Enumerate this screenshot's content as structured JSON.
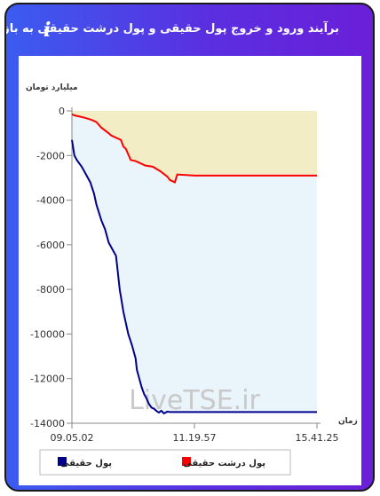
{
  "header": {
    "title": "برآیند ورود و خروج پول حقیقی و پول درشت حقیقی به بازار",
    "info_icon": "i"
  },
  "watermark": "LiveTSE.ir",
  "colors": {
    "real": "#00008B",
    "big_real": "#FF0000",
    "fill_real": "#EAF4FB",
    "fill_big": "#F3EDC6"
  },
  "chart_data": {
    "type": "area",
    "ylabel": "میلیارد تومان",
    "xlabel": "زمان",
    "ylim": [
      -14000,
      0
    ],
    "yticks": [
      0,
      -2000,
      -4000,
      -6000,
      -8000,
      -10000,
      -12000,
      -14000
    ],
    "xticks": [
      "09.05.02",
      "11.19.57",
      "15.41.25"
    ],
    "grid": false,
    "legend_position": "bottom",
    "series": [
      {
        "name": "پول حقیقی",
        "color": "#00008B",
        "x": [
          0,
          0.003,
          0.01,
          0.02,
          0.04,
          0.055,
          0.075,
          0.09,
          0.1,
          0.12,
          0.135,
          0.15,
          0.165,
          0.18,
          0.195,
          0.21,
          0.23,
          0.245,
          0.26,
          0.265,
          0.275,
          0.285,
          0.295,
          0.305,
          0.315,
          0.325,
          0.335,
          0.345,
          0.355,
          0.365,
          0.375,
          0.39,
          0.4,
          0.42,
          1.0
        ],
        "values": [
          -1300,
          -1500,
          -2000,
          -2200,
          -2500,
          -2800,
          -3200,
          -3700,
          -4200,
          -4900,
          -5300,
          -5900,
          -6200,
          -6500,
          -8000,
          -9000,
          -10000,
          -10500,
          -11100,
          -11600,
          -12000,
          -12400,
          -12700,
          -12900,
          -13150,
          -13300,
          -13350,
          -13450,
          -13520,
          -13440,
          -13560,
          -13480,
          -13500,
          -13500,
          -13500
        ]
      },
      {
        "name": "پول درشت حقیقی",
        "color": "#FF0000",
        "x": [
          0,
          0.01,
          0.03,
          0.05,
          0.08,
          0.1,
          0.12,
          0.15,
          0.16,
          0.18,
          0.2,
          0.21,
          0.22,
          0.24,
          0.26,
          0.27,
          0.3,
          0.33,
          0.36,
          0.39,
          0.4,
          0.42,
          0.43,
          0.5,
          0.6,
          0.7,
          0.8,
          0.9,
          1.0
        ],
        "values": [
          -150,
          -200,
          -250,
          -300,
          -400,
          -500,
          -750,
          -1000,
          -1100,
          -1200,
          -1300,
          -1600,
          -1700,
          -2200,
          -2250,
          -2300,
          -2450,
          -2500,
          -2700,
          -2950,
          -3100,
          -3200,
          -2850,
          -2900,
          -2900,
          -2900,
          -2900,
          -2900,
          -2900
        ]
      }
    ]
  }
}
